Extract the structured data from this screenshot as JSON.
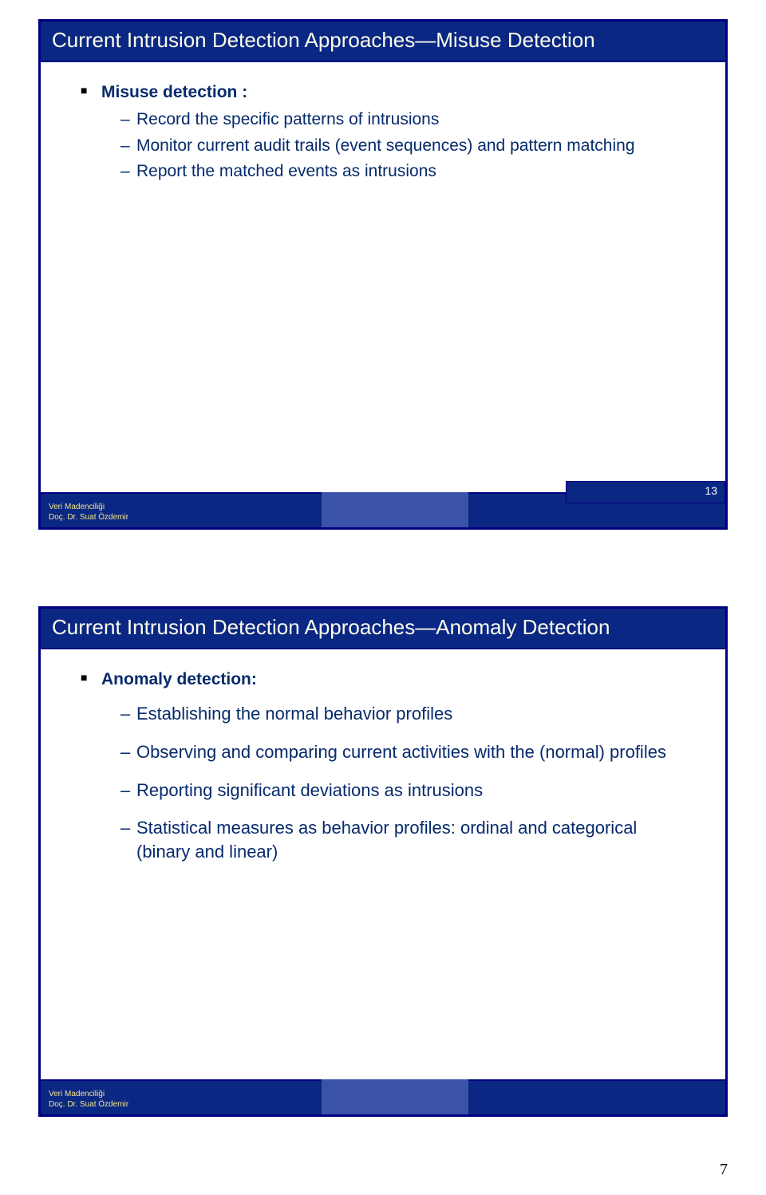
{
  "slide1": {
    "title": "Current Intrusion Detection Approaches—Misuse Detection",
    "heading": "Misuse detection :",
    "items": [
      "Record the specific patterns of intrusions",
      "Monitor current audit trails (event sequences) and pattern matching",
      "Report the matched events as intrusions"
    ],
    "footer": {
      "line1": "Veri Madenciliği",
      "line2": "Doç. Dr. Suat Özdemir"
    },
    "page": "13"
  },
  "slide2": {
    "title": "Current Intrusion Detection Approaches—Anomaly Detection",
    "heading": "Anomaly detection:",
    "items": [
      "Establishing the normal behavior profiles",
      "Observing and comparing current activities with the (normal) profiles",
      "Reporting significant deviations as intrusions",
      "Statistical measures as behavior profiles: ordinal and categorical (binary and linear)"
    ],
    "footer": {
      "line1": "Veri Madenciliği",
      "line2": "Doç. Dr. Suat Özdemir"
    }
  },
  "overall_page": "7",
  "styling": {
    "title_bg": "#0a2784",
    "title_fg": "#fefeea",
    "border_color": "#000080",
    "body_text_color": "#062a6b",
    "footer_text_color": "#f6e784",
    "footer_mid_color": "#3a52a8",
    "title_fontsize": 26,
    "body_fontsize": 21,
    "footer_fontsize": 10
  }
}
